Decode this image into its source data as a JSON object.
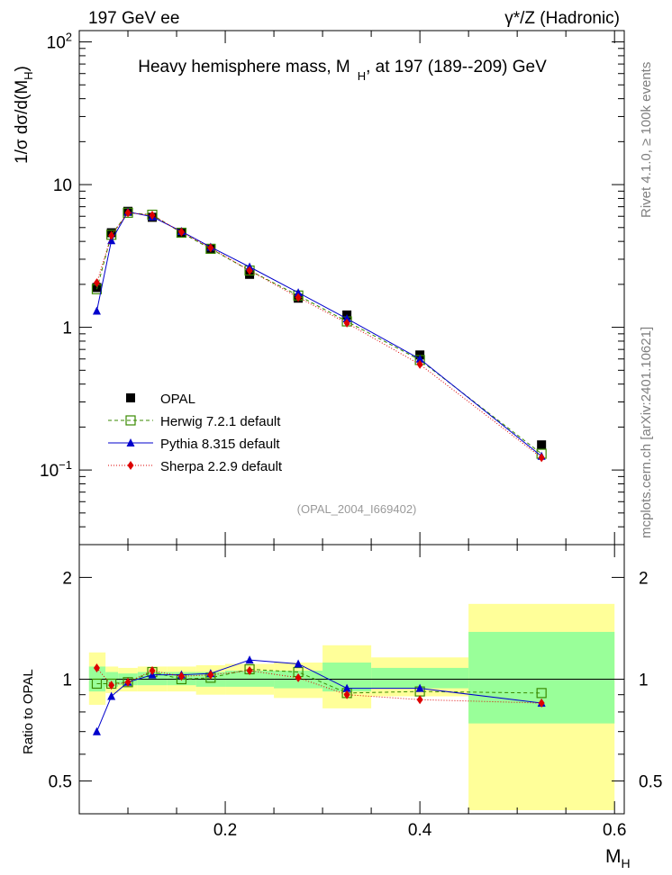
{
  "header": {
    "left": "197 GeV ee",
    "right": "γ*/Z (Hadronic)"
  },
  "side": {
    "rivet": "Rivet 4.1.0, ≥ 100k events",
    "site": "mcplots.cern.ch [arXiv:2401.10621]"
  },
  "chart_data": [
    {
      "type": "line",
      "title": "Heavy hemisphere mass, M_H, at 197 (189--209) GeV",
      "title_main": "Heavy hemisphere mass, M",
      "title_sub": "H",
      "title_tail": ", at 197 (189--209) GeV",
      "ylabel": "1/σ  dσ/d(M_H)",
      "ylabel_main": "1/σ  dσ/d(M",
      "ylabel_sub": "H",
      "ylabel_tail": ")",
      "yscale": "log",
      "xlim": [
        0.05,
        0.61
      ],
      "ylim": [
        0.03,
        120
      ],
      "yticks": [
        {
          "value": 0.1,
          "base": "10",
          "exp": "−1"
        },
        {
          "value": 1,
          "base": "1",
          "exp": ""
        },
        {
          "value": 10,
          "base": "10",
          "exp": ""
        },
        {
          "value": 100,
          "base": "10",
          "exp": "2"
        }
      ],
      "watermark": "(OPAL_2004_I669402)",
      "legend_position": "lower-left",
      "x": [
        0.068,
        0.083,
        0.1,
        0.125,
        0.155,
        0.185,
        0.225,
        0.275,
        0.325,
        0.4,
        0.525
      ],
      "series": [
        {
          "name": "OPAL",
          "color": "#000000",
          "marker": "square",
          "values": [
            1.9,
            4.6,
            6.5,
            5.9,
            4.6,
            3.55,
            2.35,
            1.6,
            1.22,
            0.64,
            0.15
          ]
        },
        {
          "name": "Herwig 7.2.1 default",
          "color": "#3a8a00",
          "marker": "open-square",
          "dash": "4,3",
          "values": [
            1.85,
            4.45,
            6.35,
            6.15,
            4.6,
            3.55,
            2.5,
            1.67,
            1.1,
            0.59,
            0.13
          ]
        },
        {
          "name": "Pythia 8.315 default",
          "color": "#0000cc",
          "marker": "triangle",
          "values": [
            1.3,
            4.05,
            6.45,
            5.95,
            4.7,
            3.65,
            2.65,
            1.75,
            1.15,
            0.6,
            0.125
          ]
        },
        {
          "name": "Sherpa 2.2.9 default",
          "color": "#dd0000",
          "marker": "diamond",
          "dash": "1,2",
          "values": [
            2.05,
            4.4,
            6.35,
            6.1,
            4.65,
            3.6,
            2.5,
            1.62,
            1.07,
            0.55,
            0.122
          ]
        }
      ]
    },
    {
      "type": "line",
      "title": "",
      "xlabel": "M_H",
      "xlabel_main": "M",
      "xlabel_sub": "H",
      "ylabel": "Ratio to OPAL",
      "yscale": "log",
      "xlim": [
        0.05,
        0.61
      ],
      "ylim": [
        0.4,
        2.5
      ],
      "xticks": [
        0.2,
        0.4,
        0.6
      ],
      "xtick_labels": [
        "0.2",
        "0.4",
        "0.6"
      ],
      "yticks": [
        0.5,
        1,
        2
      ],
      "ytick_labels": [
        "0.5",
        "1",
        "2"
      ],
      "bands": [
        {
          "x0": 0.06,
          "x1": 0.077,
          "yellow": [
            0.84,
            1.2
          ],
          "green": [
            0.92,
            1.09
          ]
        },
        {
          "x0": 0.077,
          "x1": 0.09,
          "yellow": [
            0.91,
            1.09
          ],
          "green": [
            0.95,
            1.05
          ]
        },
        {
          "x0": 0.09,
          "x1": 0.11,
          "yellow": [
            0.92,
            1.08
          ],
          "green": [
            0.96,
            1.04
          ]
        },
        {
          "x0": 0.11,
          "x1": 0.14,
          "yellow": [
            0.92,
            1.09
          ],
          "green": [
            0.96,
            1.05
          ]
        },
        {
          "x0": 0.14,
          "x1": 0.17,
          "yellow": [
            0.92,
            1.09
          ],
          "green": [
            0.96,
            1.05
          ]
        },
        {
          "x0": 0.17,
          "x1": 0.2,
          "yellow": [
            0.9,
            1.1
          ],
          "green": [
            0.95,
            1.05
          ]
        },
        {
          "x0": 0.2,
          "x1": 0.25,
          "yellow": [
            0.9,
            1.11
          ],
          "green": [
            0.95,
            1.06
          ]
        },
        {
          "x0": 0.25,
          "x1": 0.3,
          "yellow": [
            0.88,
            1.12
          ],
          "green": [
            0.94,
            1.06
          ]
        },
        {
          "x0": 0.3,
          "x1": 0.35,
          "yellow": [
            0.82,
            1.26
          ],
          "green": [
            0.92,
            1.12
          ]
        },
        {
          "x0": 0.35,
          "x1": 0.45,
          "yellow": [
            0.89,
            1.16
          ],
          "green": [
            0.94,
            1.08
          ]
        },
        {
          "x0": 0.45,
          "x1": 0.6,
          "yellow": [
            0.41,
            1.67
          ],
          "green": [
            0.74,
            1.38
          ]
        }
      ],
      "series": [
        {
          "name": "Herwig 7.2.1 default",
          "color": "#3a8a00",
          "marker": "open-square",
          "dash": "4,3",
          "values": [
            0.97,
            0.97,
            0.98,
            1.05,
            1.0,
            1.01,
            1.07,
            1.05,
            0.91,
            0.92,
            0.91
          ]
        },
        {
          "name": "Pythia 8.315 default",
          "color": "#0000cc",
          "marker": "triangle",
          "values": [
            0.7,
            0.89,
            0.98,
            1.03,
            1.03,
            1.04,
            1.14,
            1.11,
            0.94,
            0.94,
            0.85
          ]
        },
        {
          "name": "Sherpa 2.2.9 default",
          "color": "#dd0000",
          "marker": "diamond",
          "dash": "1,2",
          "values": [
            1.08,
            0.96,
            0.98,
            1.06,
            1.02,
            1.03,
            1.06,
            1.01,
            0.9,
            0.87,
            0.85
          ]
        }
      ]
    }
  ]
}
